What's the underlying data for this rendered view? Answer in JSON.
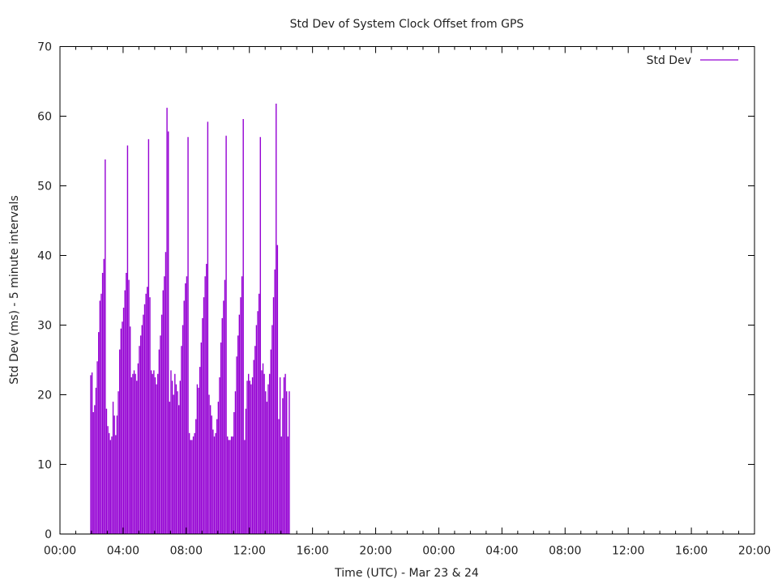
{
  "chart_data": {
    "type": "bar",
    "title": "Std Dev of System Clock Offset from GPS",
    "xlabel": "Time (UTC) - Mar 23 & 24",
    "ylabel": "Std Dev (ms) - 5 minute intervals",
    "xlim_hours": [
      0,
      44
    ],
    "ylim": [
      0,
      70
    ],
    "yticks": [
      0,
      10,
      20,
      30,
      40,
      50,
      60,
      70
    ],
    "xticks": [
      {
        "hour": 0,
        "label": "00:00"
      },
      {
        "hour": 4,
        "label": "04:00"
      },
      {
        "hour": 8,
        "label": "08:00"
      },
      {
        "hour": 12,
        "label": "12:00"
      },
      {
        "hour": 16,
        "label": "16:00"
      },
      {
        "hour": 20,
        "label": "20:00"
      },
      {
        "hour": 24,
        "label": "00:00"
      },
      {
        "hour": 28,
        "label": "04:00"
      },
      {
        "hour": 32,
        "label": "08:00"
      },
      {
        "hour": 36,
        "label": "12:00"
      },
      {
        "hour": 40,
        "label": "16:00"
      },
      {
        "hour": 44,
        "label": "20:00"
      }
    ],
    "grid": false,
    "legend": {
      "position": "top-right"
    },
    "series": [
      {
        "name": "Std Dev",
        "color": "#9400d3",
        "x_start_hour": 1.95,
        "x_step_hours": 0.0833,
        "values": [
          22.8,
          23.2,
          17.5,
          18.5,
          21.0,
          24.8,
          29.0,
          33.5,
          34.5,
          37.5,
          39.5,
          53.8,
          18.0,
          15.5,
          14.5,
          13.5,
          14.0,
          19.0,
          17.0,
          14.2,
          17.0,
          20.5,
          26.5,
          29.5,
          30.5,
          32.5,
          35.0,
          37.5,
          55.8,
          36.5,
          29.8,
          22.5,
          23.0,
          23.5,
          23.0,
          22.0,
          24.5,
          27.0,
          28.5,
          30.0,
          31.5,
          33.0,
          34.5,
          35.5,
          56.7,
          34.0,
          23.5,
          23.0,
          23.5,
          22.5,
          21.5,
          23.0,
          26.5,
          28.5,
          31.5,
          35.0,
          37.0,
          40.5,
          61.2,
          57.8,
          19.0,
          23.5,
          22.0,
          20.0,
          23.0,
          21.5,
          20.5,
          18.5,
          22.0,
          27.0,
          30.0,
          33.5,
          36.0,
          37.0,
          57.0,
          14.5,
          13.5,
          13.5,
          14.0,
          14.5,
          16.5,
          21.5,
          21.0,
          24.0,
          27.5,
          31.0,
          34.0,
          37.0,
          38.8,
          59.2,
          20.0,
          18.5,
          17.0,
          15.0,
          14.0,
          14.5,
          16.5,
          19.0,
          22.5,
          27.5,
          31.0,
          33.5,
          36.5,
          57.2,
          14.0,
          13.5,
          13.5,
          14.0,
          14.0,
          17.5,
          20.5,
          25.5,
          28.5,
          31.5,
          34.0,
          37.0,
          59.6,
          13.5,
          18.0,
          22.0,
          23.0,
          22.0,
          21.5,
          22.5,
          25.0,
          27.0,
          30.0,
          32.0,
          34.5,
          57.0,
          23.5,
          24.5,
          23.0,
          20.5,
          19.0,
          21.5,
          23.0,
          26.5,
          30.0,
          34.0,
          38.0,
          61.8,
          41.5,
          16.5,
          22.5,
          14.0,
          19.5,
          22.5,
          23.0,
          20.5,
          14.0,
          20.5
        ]
      }
    ]
  }
}
